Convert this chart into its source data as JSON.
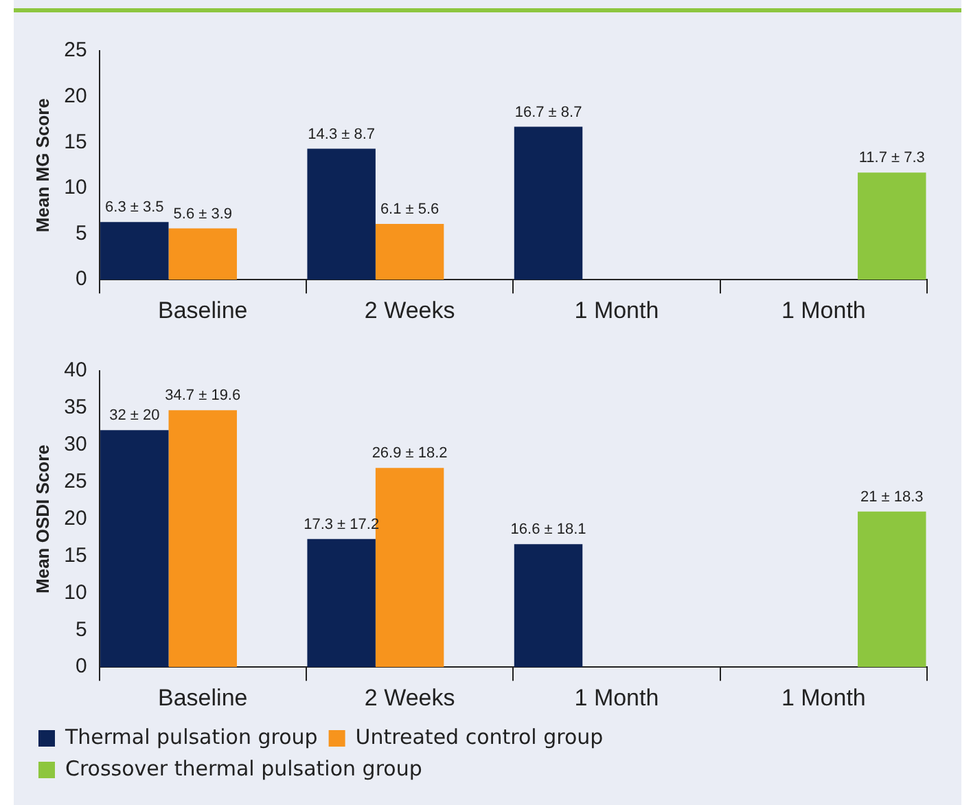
{
  "chart_data": [
    {
      "type": "bar",
      "ylabel": "Mean MG Score",
      "categories": [
        "Baseline",
        "2 Weeks",
        "1 Month",
        "1 Month"
      ],
      "ylim": [
        0,
        25
      ],
      "yticks": [
        0,
        5,
        10,
        15,
        20,
        25
      ],
      "grid": false,
      "legend": false,
      "series": [
        {
          "color": "#0c2356",
          "values": [
            6.3,
            14.3,
            16.7,
            null
          ],
          "value_labels": [
            "6.3 ± 3.5",
            "14.3 ± 8.7",
            "16.7 ± 8.7",
            null
          ]
        },
        {
          "color": "#f7941d",
          "values": [
            5.6,
            6.1,
            null,
            null
          ],
          "value_labels": [
            "5.6 ± 3.9",
            "6.1 ± 5.6",
            null,
            null
          ]
        },
        {
          "color": "#8dc63f",
          "values": [
            null,
            null,
            null,
            11.7
          ],
          "value_labels": [
            null,
            null,
            null,
            "11.7 ± 7.3"
          ]
        }
      ]
    },
    {
      "type": "bar",
      "ylabel": "Mean OSDI Score",
      "categories": [
        "Baseline",
        "2 Weeks",
        "1 Month",
        "1 Month"
      ],
      "ylim": [
        0,
        40
      ],
      "yticks": [
        0,
        5,
        10,
        15,
        20,
        25,
        30,
        35,
        40
      ],
      "grid": false,
      "legend": "bottom",
      "series": [
        {
          "name": "Thermal pulsation group",
          "color": "#0c2356",
          "values": [
            32,
            17.3,
            16.6,
            null
          ],
          "value_labels": [
            "32 ± 20",
            "17.3 ± 17.2",
            "16.6 ± 18.1",
            null
          ]
        },
        {
          "name": "Untreated control group",
          "color": "#f7941d",
          "values": [
            34.7,
            26.9,
            null,
            null
          ],
          "value_labels": [
            "34.7 ± 19.6",
            "26.9 ± 18.2",
            null,
            null
          ]
        },
        {
          "name": "Crossover thermal pulsation group",
          "color": "#8dc63f",
          "values": [
            null,
            null,
            null,
            21
          ],
          "value_labels": [
            null,
            null,
            null,
            "21 ± 18.3"
          ]
        }
      ]
    }
  ]
}
